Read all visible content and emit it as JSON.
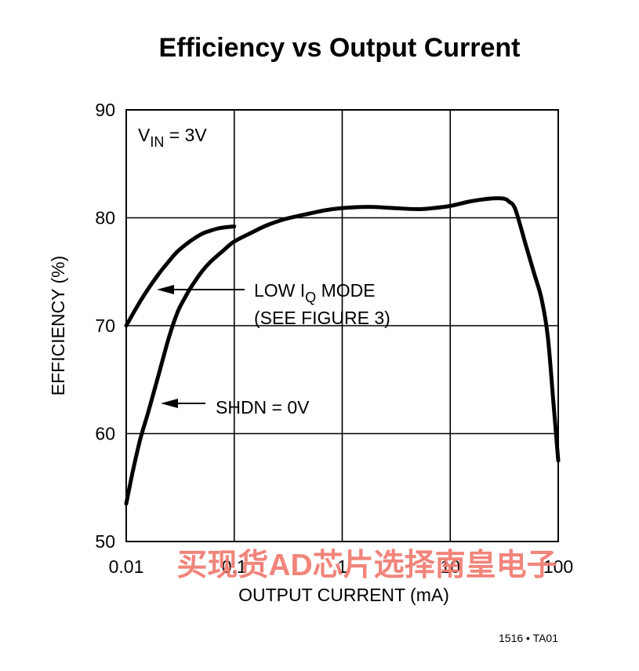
{
  "chart_data": {
    "type": "line",
    "title": "Efficiency vs Output Current",
    "xlabel": "OUTPUT CURRENT (mA)",
    "ylabel": "EFFICIENCY (%)",
    "x_scale": "log",
    "xlim": [
      0.01,
      100
    ],
    "ylim": [
      50,
      90
    ],
    "x_ticks": [
      "0.01",
      "0.1",
      "1",
      "10",
      "100"
    ],
    "y_ticks": [
      "50",
      "60",
      "70",
      "80",
      "90"
    ],
    "grid": true,
    "condition": {
      "main": "V",
      "sub": "IN",
      "rest": " = 3V"
    },
    "series": [
      {
        "id": "low-iq",
        "label_lines": [
          {
            "main": "LOW I",
            "sub": "Q",
            "rest": " MODE"
          },
          {
            "main": "(SEE FIGURE 3)",
            "sub": "",
            "rest": ""
          }
        ],
        "x": [
          0.01,
          0.012,
          0.015,
          0.02,
          0.025,
          0.03,
          0.04,
          0.05,
          0.06,
          0.07,
          0.08,
          0.1
        ],
        "y": [
          70.0,
          71.4,
          73.0,
          74.8,
          76.0,
          76.9,
          77.9,
          78.5,
          78.8,
          79.0,
          79.1,
          79.2
        ]
      },
      {
        "id": "shdn",
        "label_lines": [
          {
            "main": "SHDN = 0V",
            "sub": "",
            "rest": ""
          }
        ],
        "x": [
          0.01,
          0.0115,
          0.0135,
          0.016,
          0.02,
          0.025,
          0.03,
          0.035,
          0.04,
          0.05,
          0.06,
          0.08,
          0.1,
          0.15,
          0.2,
          0.3,
          0.5,
          0.7,
          1,
          1.5,
          2,
          3,
          5,
          7,
          10,
          15,
          20,
          25,
          30,
          33,
          35,
          40,
          50,
          60,
          70,
          80,
          90,
          100
        ],
        "y": [
          53.5,
          56.5,
          59.5,
          62.0,
          65.5,
          69.0,
          71.3,
          72.6,
          73.6,
          75.0,
          75.9,
          77.0,
          77.8,
          78.7,
          79.3,
          79.9,
          80.4,
          80.7,
          80.9,
          81.0,
          81.0,
          80.9,
          80.8,
          80.9,
          81.1,
          81.5,
          81.7,
          81.8,
          81.8,
          81.7,
          81.5,
          80.8,
          77.5,
          74.8,
          72.5,
          69.0,
          63.0,
          57.5
        ]
      }
    ]
  },
  "figure_code": "1516 • TA01",
  "watermark": "买现货AD芯片选择南皇电子"
}
